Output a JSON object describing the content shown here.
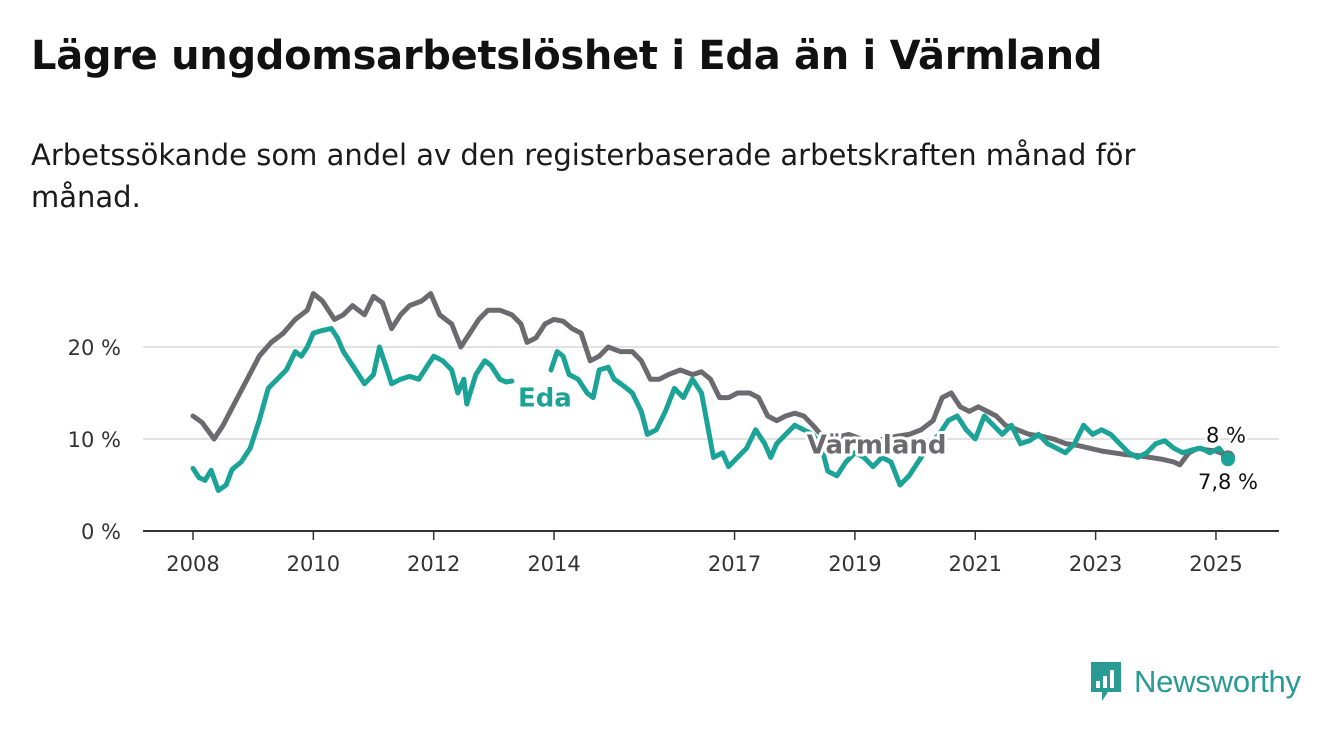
{
  "title": "Lägre ungdomsarbetslöshet i Eda än i Värmland",
  "subtitle": "Arbetssökande som andel av den registerbaserade arbetskraften månad för månad.",
  "brand": {
    "name": "Newsworthy"
  },
  "colors": {
    "eda": "#1aa396",
    "varmland": "#6b6a6f",
    "grid": "#d9d9d9",
    "axis": "#333333"
  },
  "chart_data": {
    "type": "line",
    "ylim": [
      0,
      30
    ],
    "xlim": [
      2008.0,
      2025.5
    ],
    "y_ticks": [
      {
        "value": 0,
        "label": "0 %"
      },
      {
        "value": 10,
        "label": "10 %"
      },
      {
        "value": 20,
        "label": "20 %"
      }
    ],
    "x_ticks": [
      {
        "value": 2008,
        "label": "2008"
      },
      {
        "value": 2010,
        "label": "2010"
      },
      {
        "value": 2012,
        "label": "2012"
      },
      {
        "value": 2014,
        "label": "2014"
      },
      {
        "value": 2017,
        "label": "2017"
      },
      {
        "value": 2019,
        "label": "2019"
      },
      {
        "value": 2021,
        "label": "2021"
      },
      {
        "value": 2023,
        "label": "2023"
      },
      {
        "value": 2025,
        "label": "2025"
      }
    ],
    "series": [
      {
        "name": "Värmland",
        "end_label": "8 %",
        "points": [
          [
            2008.0,
            12.5
          ],
          [
            2008.15,
            11.8
          ],
          [
            2008.35,
            10.0
          ],
          [
            2008.5,
            11.5
          ],
          [
            2008.7,
            14.0
          ],
          [
            2008.9,
            16.5
          ],
          [
            2009.1,
            19.0
          ],
          [
            2009.3,
            20.5
          ],
          [
            2009.5,
            21.5
          ],
          [
            2009.7,
            23.0
          ],
          [
            2009.9,
            24.0
          ],
          [
            2010.0,
            25.8
          ],
          [
            2010.15,
            25.0
          ],
          [
            2010.35,
            23.0
          ],
          [
            2010.5,
            23.5
          ],
          [
            2010.65,
            24.5
          ],
          [
            2010.85,
            23.5
          ],
          [
            2011.0,
            25.5
          ],
          [
            2011.15,
            24.8
          ],
          [
            2011.3,
            22.0
          ],
          [
            2011.45,
            23.5
          ],
          [
            2011.6,
            24.5
          ],
          [
            2011.8,
            25.0
          ],
          [
            2011.95,
            25.8
          ],
          [
            2012.1,
            23.5
          ],
          [
            2012.3,
            22.5
          ],
          [
            2012.45,
            20.0
          ],
          [
            2012.6,
            21.5
          ],
          [
            2012.75,
            23.0
          ],
          [
            2012.9,
            24.0
          ],
          [
            2013.1,
            24.0
          ],
          [
            2013.3,
            23.5
          ],
          [
            2013.45,
            22.5
          ],
          [
            2013.55,
            20.5
          ],
          [
            2013.7,
            21.0
          ],
          [
            2013.85,
            22.5
          ],
          [
            2014.0,
            23.0
          ],
          [
            2014.15,
            22.8
          ],
          [
            2014.3,
            22.0
          ],
          [
            2014.45,
            21.5
          ],
          [
            2014.6,
            18.5
          ],
          [
            2014.75,
            19.0
          ],
          [
            2014.9,
            20.0
          ],
          [
            2015.1,
            19.5
          ],
          [
            2015.3,
            19.5
          ],
          [
            2015.45,
            18.5
          ],
          [
            2015.6,
            16.5
          ],
          [
            2015.75,
            16.5
          ],
          [
            2015.9,
            17.0
          ],
          [
            2016.1,
            17.5
          ],
          [
            2016.3,
            17.0
          ],
          [
            2016.45,
            17.3
          ],
          [
            2016.6,
            16.5
          ],
          [
            2016.75,
            14.5
          ],
          [
            2016.9,
            14.5
          ],
          [
            2017.05,
            15.0
          ],
          [
            2017.25,
            15.0
          ],
          [
            2017.4,
            14.5
          ],
          [
            2017.55,
            12.5
          ],
          [
            2017.7,
            12.0
          ],
          [
            2017.85,
            12.5
          ],
          [
            2018.0,
            12.8
          ],
          [
            2018.15,
            12.5
          ],
          [
            2018.3,
            11.5
          ],
          [
            2018.5,
            10.0
          ],
          [
            2018.7,
            10.2
          ],
          [
            2018.9,
            10.5
          ],
          [
            2019.1,
            10.0
          ],
          [
            2019.3,
            9.8
          ],
          [
            2019.5,
            10.0
          ],
          [
            2019.7,
            10.3
          ],
          [
            2019.9,
            10.5
          ],
          [
            2020.1,
            11.0
          ],
          [
            2020.3,
            12.0
          ],
          [
            2020.45,
            14.5
          ],
          [
            2020.6,
            15.0
          ],
          [
            2020.75,
            13.5
          ],
          [
            2020.9,
            13.0
          ],
          [
            2021.05,
            13.5
          ],
          [
            2021.2,
            13.0
          ],
          [
            2021.35,
            12.5
          ],
          [
            2021.5,
            11.5
          ],
          [
            2021.7,
            11.0
          ],
          [
            2021.9,
            10.5
          ],
          [
            2022.1,
            10.3
          ],
          [
            2022.3,
            10.0
          ],
          [
            2022.5,
            9.5
          ],
          [
            2022.7,
            9.3
          ],
          [
            2022.9,
            9.0
          ],
          [
            2023.1,
            8.7
          ],
          [
            2023.3,
            8.5
          ],
          [
            2023.5,
            8.3
          ],
          [
            2023.7,
            8.2
          ],
          [
            2023.9,
            8.0
          ],
          [
            2024.1,
            7.8
          ],
          [
            2024.3,
            7.5
          ],
          [
            2024.4,
            7.2
          ],
          [
            2024.55,
            8.5
          ],
          [
            2024.7,
            9.0
          ],
          [
            2024.85,
            8.8
          ],
          [
            2025.0,
            8.7
          ],
          [
            2025.15,
            8.3
          ],
          [
            2025.2,
            8.0
          ]
        ]
      },
      {
        "name": "Eda",
        "end_label": "7,8 %",
        "points": [
          [
            2008.0,
            6.8
          ],
          [
            2008.1,
            5.8
          ],
          [
            2008.2,
            5.5
          ],
          [
            2008.3,
            6.6
          ],
          [
            2008.42,
            4.4
          ],
          [
            2008.55,
            5.0
          ],
          [
            2008.65,
            6.7
          ],
          [
            2008.8,
            7.5
          ],
          [
            2008.95,
            9.0
          ],
          [
            2009.1,
            12.0
          ],
          [
            2009.25,
            15.5
          ],
          [
            2009.4,
            16.5
          ],
          [
            2009.55,
            17.5
          ],
          [
            2009.7,
            19.5
          ],
          [
            2009.8,
            19.0
          ],
          [
            2009.9,
            20.0
          ],
          [
            2010.0,
            21.5
          ],
          [
            2010.15,
            21.8
          ],
          [
            2010.3,
            22.0
          ],
          [
            2010.4,
            21.0
          ],
          [
            2010.5,
            19.5
          ],
          [
            2010.65,
            18.0
          ],
          [
            2010.85,
            16.0
          ],
          [
            2011.0,
            17.0
          ],
          [
            2011.1,
            20.0
          ],
          [
            2011.2,
            18.0
          ],
          [
            2011.3,
            16.0
          ],
          [
            2011.45,
            16.5
          ],
          [
            2011.6,
            16.8
          ],
          [
            2011.75,
            16.5
          ],
          [
            2011.9,
            18.0
          ],
          [
            2012.0,
            19.0
          ],
          [
            2012.15,
            18.5
          ],
          [
            2012.3,
            17.5
          ],
          [
            2012.4,
            15.0
          ],
          [
            2012.5,
            16.5
          ],
          [
            2012.55,
            13.8
          ],
          [
            2012.7,
            17.0
          ],
          [
            2012.85,
            18.5
          ],
          [
            2012.95,
            18.0
          ],
          [
            2013.1,
            16.5
          ],
          [
            2013.2,
            16.2
          ],
          [
            2013.3,
            16.3
          ]
        ]
      },
      {
        "name": "Eda",
        "points": [
          [
            2013.95,
            17.5
          ],
          [
            2014.05,
            19.5
          ],
          [
            2014.15,
            19.0
          ],
          [
            2014.25,
            17.0
          ],
          [
            2014.4,
            16.5
          ],
          [
            2014.55,
            15.0
          ],
          [
            2014.65,
            14.5
          ],
          [
            2014.75,
            17.5
          ],
          [
            2014.9,
            17.8
          ],
          [
            2015.0,
            16.5
          ],
          [
            2015.15,
            15.8
          ],
          [
            2015.3,
            15.0
          ],
          [
            2015.45,
            13.0
          ],
          [
            2015.55,
            10.5
          ],
          [
            2015.7,
            11.0
          ],
          [
            2015.85,
            13.0
          ],
          [
            2016.0,
            15.5
          ],
          [
            2016.15,
            14.5
          ],
          [
            2016.3,
            16.5
          ],
          [
            2016.45,
            15.0
          ],
          [
            2016.55,
            11.5
          ],
          [
            2016.65,
            8.0
          ],
          [
            2016.8,
            8.5
          ],
          [
            2016.9,
            7.0
          ],
          [
            2017.05,
            8.0
          ],
          [
            2017.2,
            9.0
          ],
          [
            2017.35,
            11.0
          ],
          [
            2017.5,
            9.5
          ],
          [
            2017.6,
            8.0
          ],
          [
            2017.7,
            9.5
          ],
          [
            2017.85,
            10.5
          ],
          [
            2018.0,
            11.5
          ],
          [
            2018.15,
            11.0
          ],
          [
            2018.3,
            10.5
          ],
          [
            2018.45,
            9.0
          ],
          [
            2018.55,
            6.5
          ],
          [
            2018.7,
            6.0
          ],
          [
            2018.85,
            7.5
          ],
          [
            2019.0,
            8.5
          ],
          [
            2019.15,
            8.0
          ],
          [
            2019.3,
            7.0
          ],
          [
            2019.45,
            8.0
          ],
          [
            2019.6,
            7.5
          ],
          [
            2019.75,
            5.0
          ],
          [
            2019.9,
            6.0
          ],
          [
            2020.05,
            7.5
          ],
          [
            2020.25,
            9.5
          ],
          [
            2020.4,
            10.5
          ],
          [
            2020.55,
            12.0
          ],
          [
            2020.7,
            12.5
          ],
          [
            2020.85,
            11.0
          ],
          [
            2021.0,
            10.0
          ],
          [
            2021.15,
            12.5
          ],
          [
            2021.3,
            11.5
          ],
          [
            2021.45,
            10.5
          ],
          [
            2021.6,
            11.5
          ],
          [
            2021.75,
            9.5
          ],
          [
            2021.9,
            9.8
          ],
          [
            2022.05,
            10.5
          ],
          [
            2022.2,
            9.5
          ],
          [
            2022.35,
            9.0
          ],
          [
            2022.5,
            8.5
          ],
          [
            2022.65,
            9.5
          ],
          [
            2022.8,
            11.5
          ],
          [
            2022.95,
            10.5
          ],
          [
            2023.1,
            11.0
          ],
          [
            2023.25,
            10.5
          ],
          [
            2023.4,
            9.5
          ],
          [
            2023.55,
            8.5
          ],
          [
            2023.7,
            8.0
          ],
          [
            2023.85,
            8.5
          ],
          [
            2024.0,
            9.5
          ],
          [
            2024.15,
            9.8
          ],
          [
            2024.3,
            9.0
          ],
          [
            2024.45,
            8.5
          ],
          [
            2024.6,
            8.8
          ],
          [
            2024.75,
            9.0
          ],
          [
            2024.9,
            8.5
          ],
          [
            2025.05,
            9.0
          ],
          [
            2025.15,
            8.2
          ],
          [
            2025.2,
            7.8
          ]
        ]
      }
    ],
    "annotations": [
      {
        "text": "Eda",
        "x": 2013.4,
        "y": 14.5,
        "series": "Eda"
      },
      {
        "text": "Värmland",
        "x": 2018.2,
        "y": 9.4,
        "series": "Värmland"
      }
    ]
  }
}
